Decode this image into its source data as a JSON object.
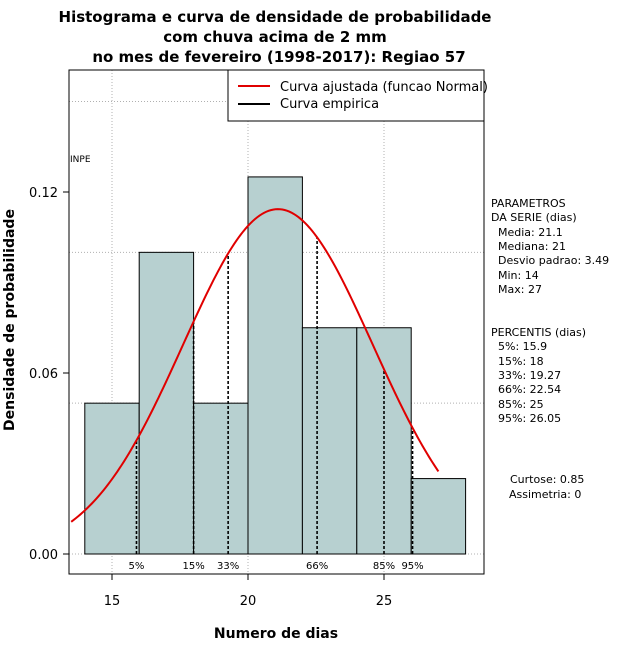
{
  "chart_data": {
    "type": "bar",
    "title_lines": [
      "Histograma e curva de densidade de probabilidade",
      "com chuva acima de 2 mm",
      "no mes de fevereiro (1998-2017): Regiao 57"
    ],
    "xlabel": "Numero de dias",
    "ylabel": "Densidade de probabilidade",
    "xlim": [
      13.5,
      28.5
    ],
    "ylim": [
      0,
      0.155
    ],
    "x_ticks": [
      15,
      20,
      25
    ],
    "y_ticks": [
      0.0,
      0.06,
      0.12
    ],
    "y_tick_labels": [
      "0.00",
      "0.06",
      "0.12"
    ],
    "x_tick_labels": [
      "15",
      "20",
      "25"
    ],
    "grid": true,
    "bins": [
      {
        "start": 14,
        "end": 16,
        "density": 0.05
      },
      {
        "start": 16,
        "end": 18,
        "density": 0.1
      },
      {
        "start": 18,
        "end": 20,
        "density": 0.05
      },
      {
        "start": 20,
        "end": 22,
        "density": 0.125
      },
      {
        "start": 22,
        "end": 24,
        "density": 0.075
      },
      {
        "start": 24,
        "end": 26,
        "density": 0.075
      },
      {
        "start": 26,
        "end": 28,
        "density": 0.025
      }
    ],
    "normal_fit": {
      "mean": 21.1,
      "sd": 3.49,
      "xmin": 13.5,
      "xmax": 27
    },
    "percentile_lines": [
      {
        "label": "5%",
        "x": 15.9
      },
      {
        "label": "15%",
        "x": 18
      },
      {
        "label": "33%",
        "x": 19.27
      },
      {
        "label": "66%",
        "x": 22.54
      },
      {
        "label": "85%",
        "x": 25
      },
      {
        "label": "95%",
        "x": 26.05
      }
    ],
    "legend": {
      "position": "top-right",
      "entries": [
        {
          "label": "Curva ajustada (funcao Normal)",
          "color": "#e00000"
        },
        {
          "label": "Curva empirica",
          "color": "#000000"
        }
      ]
    },
    "watermark": "INPE",
    "colors": {
      "bar_fill": "#b7d0d0",
      "bar_stroke": "#000000",
      "curve": "#e00000",
      "grid": "#b0b0b0"
    }
  },
  "side_panel": {
    "params_heading_1": "PARAMETROS",
    "params_heading_2": "DA SERIE (dias)",
    "params": [
      "Media: 21.1",
      "Mediana: 21",
      "Desvio padrao: 3.49",
      "Min: 14",
      "Max: 27"
    ],
    "percentis_heading": "PERCENTIS (dias)",
    "percentis": [
      "5%: 15.9",
      "15%: 18",
      "33%: 19.27",
      "66%: 22.54",
      "85%: 25",
      "95%: 26.05"
    ],
    "curtose": "Curtose: 0.85",
    "assimetria": "Assimetria: 0"
  }
}
